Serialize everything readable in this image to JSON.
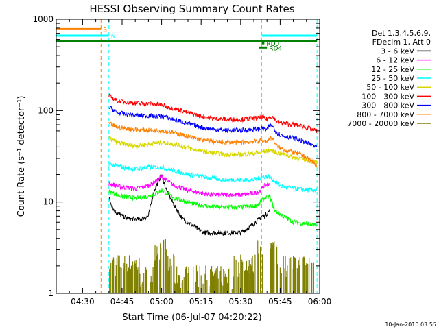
{
  "chart_data": {
    "type": "line",
    "title": "HESSI Observing Summary Count Rates",
    "xlabel": "Start Time (06-Jul-07 04:20:22)",
    "ylabel": "Count Rate (s⁻¹ detector⁻¹)",
    "yscale": "log",
    "ylim": [
      1,
      1000
    ],
    "xlim": [
      "04:20",
      "06:00"
    ],
    "x_ticks": [
      "04:30",
      "04:45",
      "05:00",
      "05:15",
      "05:30",
      "05:45",
      "06:00"
    ],
    "y_ticks": [
      "1",
      "10",
      "100",
      "1000"
    ],
    "timestamp": "10-Jan-2010 03:55",
    "legend": {
      "placement": "top-right",
      "header": [
        "Det 1,3,4,5,6,9,",
        "FDecim 1, Att 0"
      ],
      "entries": [
        {
          "label": "3 - 6 keV",
          "color": "#000000"
        },
        {
          "label": "6 - 12 keV",
          "color": "#ff00ff"
        },
        {
          "label": "12 - 25 keV",
          "color": "#00ff00"
        },
        {
          "label": "25 - 50 keV",
          "color": "#00ffff"
        },
        {
          "label": "50 - 100 keV",
          "color": "#d7d700"
        },
        {
          "label": "100 - 300 keV",
          "color": "#ff0000"
        },
        {
          "label": "300 - 800 keV",
          "color": "#0000ff"
        },
        {
          "label": "800 - 7000 keV",
          "color": "#ff8000"
        },
        {
          "label": "7000 - 20000 keV",
          "color": "#808000"
        }
      ]
    },
    "flags": [
      {
        "label": "S",
        "color": "#ff8000",
        "x_start": "04:20",
        "x_end": "04:37",
        "level": 780
      },
      {
        "label": "N",
        "color": "#00ffff",
        "x_start": "04:20",
        "x_end": "04:40",
        "level": 660
      },
      {
        "label": "",
        "color": "#00ffff",
        "x_start": "05:38",
        "x_end": "05:59",
        "level": 660
      },
      {
        "label": "",
        "color": "#008000",
        "x_start": "04:20",
        "x_end": "05:59",
        "level": 580
      },
      {
        "label": "RD4",
        "color": "#008000",
        "x_start": "05:37",
        "x_end": "05:40",
        "level": 490
      },
      {
        "label": "RD0",
        "color": "#008000",
        "x_start": "05:38",
        "x_end": "05:39",
        "level": 545
      }
    ],
    "vertical_markers": [
      {
        "x": "04:37",
        "color": "#ff8000"
      },
      {
        "x": "04:40",
        "color": "#00ffff"
      },
      {
        "x": "05:38",
        "color": "#00ffff"
      },
      {
        "x": "05:59",
        "color": "#00ffff"
      }
    ],
    "series": [
      {
        "name": "3 - 6 keV",
        "color": "#000000",
        "points": [
          [
            "04:40",
            11
          ],
          [
            "04:42",
            8
          ],
          [
            "04:45",
            7
          ],
          [
            "04:48",
            6.5
          ],
          [
            "04:52",
            6.5
          ],
          [
            "04:55",
            7
          ],
          [
            "04:57",
            13
          ],
          [
            "05:00",
            20
          ],
          [
            "05:02",
            13
          ],
          [
            "05:05",
            9
          ],
          [
            "05:08",
            6.5
          ],
          [
            "05:12",
            5.5
          ],
          [
            "05:16",
            4.6
          ],
          [
            "05:20",
            4.6
          ],
          [
            "05:25",
            4.6
          ],
          [
            "05:30",
            4.6
          ],
          [
            "05:34",
            5.5
          ],
          [
            "05:37",
            6.5
          ],
          [
            "05:38",
            7
          ],
          [
            "05:39",
            7
          ],
          [
            "05:40",
            7.5
          ],
          [
            "05:41",
            8
          ]
        ]
      },
      {
        "name": "6 - 12 keV",
        "color": "#ff00ff",
        "points": [
          [
            "04:40",
            16
          ],
          [
            "04:45",
            14.5
          ],
          [
            "04:50",
            14
          ],
          [
            "04:55",
            15
          ],
          [
            "04:58",
            17
          ],
          [
            "05:00",
            19
          ],
          [
            "05:02",
            17
          ],
          [
            "05:05",
            15
          ],
          [
            "05:10",
            13.5
          ],
          [
            "05:15",
            12.5
          ],
          [
            "05:20",
            12
          ],
          [
            "05:25",
            12
          ],
          [
            "05:30",
            12
          ],
          [
            "05:35",
            12.5
          ],
          [
            "05:37",
            13
          ],
          [
            "05:39",
            15
          ],
          [
            "05:41",
            16
          ]
        ]
      },
      {
        "name": "12 - 25 keV",
        "color": "#00ff00",
        "points": [
          [
            "04:40",
            13
          ],
          [
            "04:45",
            11.5
          ],
          [
            "04:50",
            11
          ],
          [
            "04:55",
            11.5
          ],
          [
            "04:58",
            12.5
          ],
          [
            "05:00",
            13.5
          ],
          [
            "05:02",
            12.5
          ],
          [
            "05:05",
            11
          ],
          [
            "05:10",
            10
          ],
          [
            "05:15",
            9.2
          ],
          [
            "05:20",
            8.8
          ],
          [
            "05:25",
            8.8
          ],
          [
            "05:30",
            8.8
          ],
          [
            "05:35",
            9
          ],
          [
            "05:37",
            9.5
          ],
          [
            "05:39",
            11
          ],
          [
            "05:41",
            11.5
          ],
          [
            "05:43",
            8
          ],
          [
            "05:50",
            6
          ],
          [
            "05:55",
            5.8
          ],
          [
            "05:59",
            5.5
          ]
        ]
      },
      {
        "name": "25 - 50 keV",
        "color": "#00ffff",
        "points": [
          [
            "04:40",
            26
          ],
          [
            "04:45",
            24
          ],
          [
            "04:50",
            23
          ],
          [
            "04:55",
            24
          ],
          [
            "05:00",
            24
          ],
          [
            "05:05",
            22
          ],
          [
            "05:10",
            20
          ],
          [
            "05:15",
            19
          ],
          [
            "05:20",
            18
          ],
          [
            "05:25",
            17.5
          ],
          [
            "05:30",
            17.5
          ],
          [
            "05:35",
            17.5
          ],
          [
            "05:39",
            19
          ],
          [
            "05:41",
            19
          ],
          [
            "05:45",
            15
          ],
          [
            "05:50",
            14
          ],
          [
            "05:55",
            13.5
          ],
          [
            "05:59",
            13.5
          ]
        ]
      },
      {
        "name": "50 - 100 keV",
        "color": "#d7d700",
        "points": [
          [
            "04:40",
            50
          ],
          [
            "04:43",
            45
          ],
          [
            "04:46",
            43
          ],
          [
            "04:50",
            41
          ],
          [
            "04:55",
            43
          ],
          [
            "05:00",
            45
          ],
          [
            "05:05",
            43
          ],
          [
            "05:10",
            39
          ],
          [
            "05:15",
            36
          ],
          [
            "05:20",
            34
          ],
          [
            "05:25",
            33
          ],
          [
            "05:30",
            33
          ],
          [
            "05:35",
            34
          ],
          [
            "05:38",
            35
          ],
          [
            "05:39",
            36
          ],
          [
            "05:41",
            37
          ],
          [
            "05:42",
            36
          ],
          [
            "05:45",
            34
          ],
          [
            "05:50",
            31
          ],
          [
            "05:55",
            29
          ],
          [
            "05:59",
            27
          ]
        ]
      },
      {
        "name": "100 - 300 keV",
        "color": "#ff0000",
        "points": [
          [
            "04:40",
            145
          ],
          [
            "04:43",
            128
          ],
          [
            "04:46",
            125
          ],
          [
            "04:50",
            120
          ],
          [
            "04:55",
            118
          ],
          [
            "04:58",
            118
          ],
          [
            "05:00",
            115
          ],
          [
            "05:05",
            105
          ],
          [
            "05:10",
            95
          ],
          [
            "05:15",
            87
          ],
          [
            "05:20",
            82
          ],
          [
            "05:25",
            80
          ],
          [
            "05:30",
            80
          ],
          [
            "05:35",
            82
          ],
          [
            "05:38",
            85
          ],
          [
            "05:40",
            80
          ],
          [
            "05:41",
            85
          ],
          [
            "05:42",
            86
          ],
          [
            "05:44",
            75
          ],
          [
            "05:47",
            72
          ],
          [
            "05:50",
            70
          ],
          [
            "05:54",
            67
          ],
          [
            "05:57",
            62
          ],
          [
            "05:59",
            60
          ]
        ]
      },
      {
        "name": "300 - 800 keV",
        "color": "#0000ff",
        "points": [
          [
            "04:40",
            110
          ],
          [
            "04:43",
            95
          ],
          [
            "04:46",
            92
          ],
          [
            "04:50",
            88
          ],
          [
            "04:55",
            88
          ],
          [
            "05:00",
            87
          ],
          [
            "05:05",
            80
          ],
          [
            "05:10",
            72
          ],
          [
            "05:15",
            66
          ],
          [
            "05:20",
            62
          ],
          [
            "05:25",
            61
          ],
          [
            "05:30",
            61
          ],
          [
            "05:35",
            62
          ],
          [
            "05:38",
            64
          ],
          [
            "05:40",
            62
          ],
          [
            "05:41",
            68
          ],
          [
            "05:42",
            68
          ],
          [
            "05:44",
            56
          ],
          [
            "05:47",
            52
          ],
          [
            "05:50",
            50
          ],
          [
            "05:54",
            46
          ],
          [
            "05:57",
            42
          ],
          [
            "05:59",
            40
          ]
        ]
      },
      {
        "name": "800 - 7000 keV",
        "color": "#ff8000",
        "points": [
          [
            "04:40",
            72
          ],
          [
            "04:43",
            66
          ],
          [
            "04:46",
            64
          ],
          [
            "04:50",
            62
          ],
          [
            "04:55",
            61
          ],
          [
            "05:00",
            61
          ],
          [
            "05:05",
            57
          ],
          [
            "05:10",
            52
          ],
          [
            "05:15",
            48
          ],
          [
            "05:20",
            46
          ],
          [
            "05:25",
            45
          ],
          [
            "05:30",
            45
          ],
          [
            "05:35",
            46
          ],
          [
            "05:38",
            47
          ],
          [
            "05:40",
            46
          ],
          [
            "05:41",
            50
          ],
          [
            "05:42",
            50
          ],
          [
            "05:44",
            40
          ],
          [
            "05:47",
            37
          ],
          [
            "05:50",
            35
          ],
          [
            "05:54",
            32
          ],
          [
            "05:57",
            28
          ],
          [
            "05:59",
            25
          ]
        ]
      }
    ],
    "bars_series": {
      "name": "7000 - 20000 keV",
      "color": "#808000",
      "segments": [
        {
          "x_start": "04:40",
          "x_end": "04:52",
          "level": 2
        },
        {
          "x_start": "04:52",
          "x_end": "04:57",
          "level": 1.5
        },
        {
          "x_start": "04:57",
          "x_end": "05:02",
          "level": 3
        },
        {
          "x_start": "05:02",
          "x_end": "05:05",
          "level": 2
        },
        {
          "x_start": "05:05",
          "x_end": "05:27",
          "level": 1.5
        },
        {
          "x_start": "05:27",
          "x_end": "05:36",
          "level": 2
        },
        {
          "x_start": "05:36",
          "x_end": "05:39",
          "level": 3
        },
        {
          "x_start": "05:41",
          "x_end": "05:44",
          "level": 3
        },
        {
          "x_start": "05:44",
          "x_end": "05:59",
          "level": 2
        }
      ]
    }
  }
}
